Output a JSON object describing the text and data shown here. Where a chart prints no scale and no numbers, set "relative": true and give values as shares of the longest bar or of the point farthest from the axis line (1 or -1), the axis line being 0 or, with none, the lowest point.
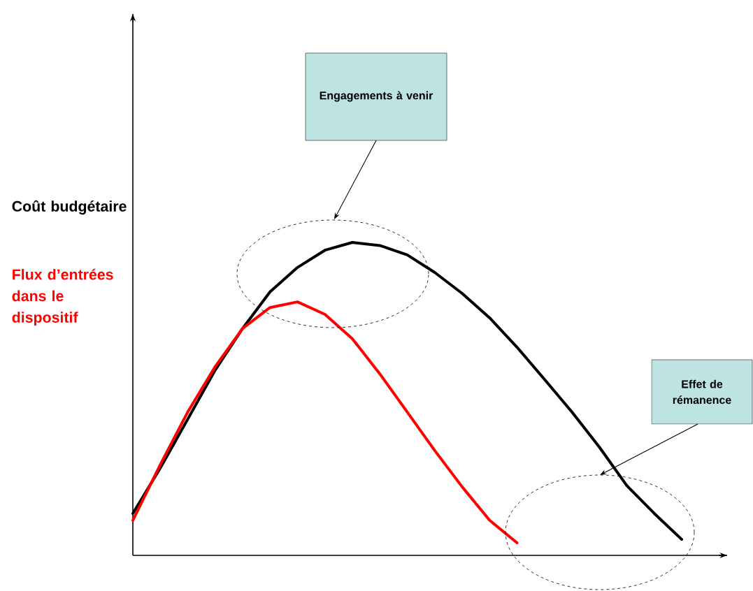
{
  "chart_data": {
    "type": "line",
    "relative": true,
    "ylabel": "Coût budgétaire",
    "categories": [
      null,
      null,
      null,
      null,
      null,
      null,
      null,
      null,
      null,
      null,
      null,
      null,
      null,
      null,
      null,
      null,
      null,
      null,
      null,
      null,
      null
    ],
    "series": [
      {
        "color": "#000000",
        "values": [
          0.134,
          0.279,
          0.435,
          0.592,
          0.725,
          0.842,
          0.92,
          0.975,
          1.0,
          0.99,
          0.96,
          0.904,
          0.837,
          0.759,
          0.665,
          0.5625,
          0.458,
          0.346,
          0.223,
          0.134,
          0.051
        ]
      },
      {
        "name": "Flux d’entrées dans le dispositif",
        "color": "#ff0000",
        "values": [
          0.112,
          0.29,
          0.458,
          0.603,
          0.725,
          0.792,
          0.81,
          0.77,
          0.692,
          0.58,
          0.458,
          0.335,
          0.219,
          0.112,
          0.04,
          null,
          null,
          null,
          null,
          null,
          null
        ]
      }
    ],
    "annotations": [
      "Engagements à venir",
      "Effet de rémanence"
    ],
    "marker": "none",
    "line_style": "solid"
  }
}
